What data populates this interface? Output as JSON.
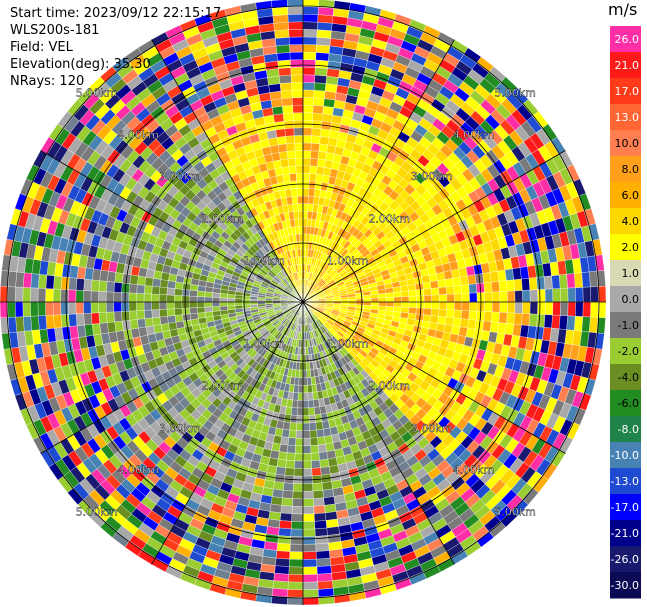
{
  "header": {
    "start_time": "Start time: 2023/09/12 22:15:17",
    "instrument": "WLS200s-181",
    "field": "Field: VEL",
    "elevation": "Elevation(deg): 35.30",
    "nrays": "NRays: 120"
  },
  "colorbar": {
    "unit": "m/s",
    "ticks": [
      "26.0",
      "21.0",
      "17.0",
      "13.0",
      "10.0",
      "8.0",
      "6.0",
      "4.0",
      "2.0",
      "1.0",
      "0.0",
      "-1.0",
      "-2.0",
      "-4.0",
      "-6.0",
      "-8.0",
      "-10.0",
      "-13.0",
      "-17.0",
      "-21.0",
      "-26.0",
      "-30.0"
    ],
    "colors": [
      "#ff2ea6",
      "#ff1a1a",
      "#ff3b1a",
      "#ff6633",
      "#ff7f50",
      "#ff9f1a",
      "#ffb000",
      "#ffd700",
      "#ffff00",
      "#d9d9b3",
      "#a9a9a9",
      "#7a7a7a",
      "#9acd32",
      "#6b8e23",
      "#228b22",
      "#1e8449",
      "#4682b4",
      "#1e4bd2",
      "#0000ff",
      "#00008b",
      "#191970",
      "#0a0a55"
    ]
  },
  "chart_data": {
    "type": "heatmap",
    "projection": "polar PPI",
    "field": "VEL",
    "units": "m/s",
    "nrays": 120,
    "elevation_deg": 35.3,
    "range_rings_km": [
      1,
      2,
      3,
      4,
      5
    ],
    "range_labels": [
      "1.00km",
      "2.00km",
      "3.00km",
      "4.00km",
      "5.00km"
    ],
    "value_range": [
      -30,
      26
    ]
  }
}
